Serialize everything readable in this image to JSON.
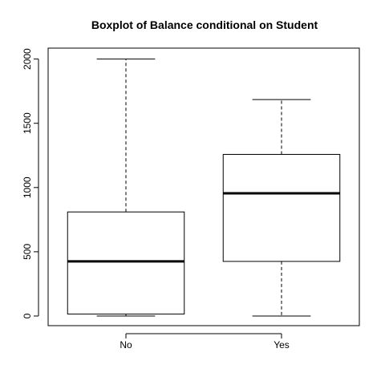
{
  "chart_data": {
    "type": "boxplot",
    "title": "Boxplot of Balance conditional on Student",
    "xlabel": "",
    "ylabel": "",
    "categories": [
      "No",
      "Yes"
    ],
    "boxes": [
      {
        "category": "No",
        "whisker_low": 0,
        "q1": 15,
        "median": 425,
        "q3": 810,
        "whisker_high": 2000
      },
      {
        "category": "Yes",
        "whisker_low": 0,
        "q1": 425,
        "median": 955,
        "q3": 1258,
        "whisker_high": 1685
      }
    ],
    "ylim": [
      -75,
      2085
    ],
    "yticks": [
      0,
      500,
      1000,
      1500,
      2000
    ],
    "grid": false,
    "legend": "none"
  }
}
